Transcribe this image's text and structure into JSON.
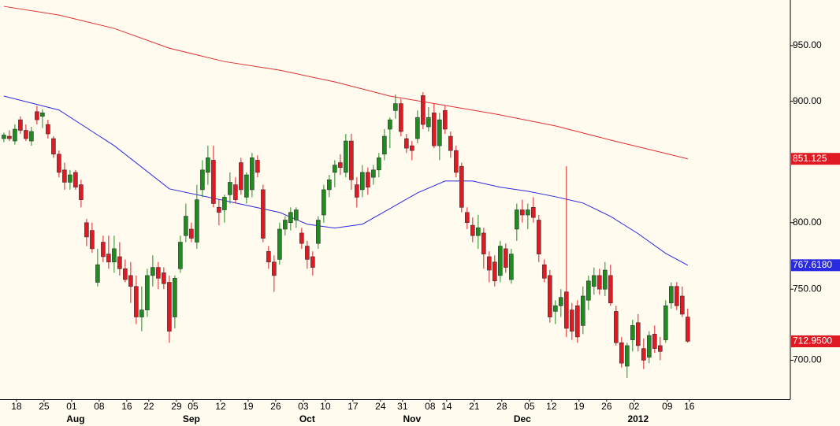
{
  "chart_data": {
    "type": "candlestick",
    "log_scale": true,
    "ylim": [
      674,
      993
    ],
    "xlim": [
      -0.7,
      142.6
    ],
    "yticks": [
      {
        "value": 950,
        "label": "950.00"
      },
      {
        "value": 900,
        "label": "900.00"
      },
      {
        "value": 800,
        "label": "800.00"
      },
      {
        "value": 750,
        "label": "750.00"
      },
      {
        "value": 700,
        "label": "700.00"
      }
    ],
    "up_color": "#1e8c1e",
    "down_color": "#e01a22",
    "open": [
      868,
      870,
      866,
      884,
      875,
      866,
      891,
      887,
      880,
      868,
      855,
      842,
      832,
      840,
      830,
      800,
      794,
      755,
      785,
      776,
      770,
      774,
      765,
      760,
      752,
      730,
      735,
      760,
      766,
      762,
      755,
      730,
      765,
      790,
      795,
      785,
      826,
      840,
      850,
      812,
      810,
      822,
      830,
      848,
      820,
      826,
      850,
      826,
      778,
      770,
      772,
      795,
      800,
      802,
      792,
      782,
      774,
      784,
      806,
      826,
      840,
      848,
      840,
      866,
      830,
      826,
      840,
      836,
      842,
      855,
      876,
      892,
      898,
      868,
      862,
      868,
      905,
      878,
      890,
      862,
      892,
      870,
      858,
      845,
      808,
      798,
      790,
      792,
      774,
      770,
      760,
      780,
      757,
      795,
      810,
      806,
      812,
      802,
      768,
      760,
      734,
      738,
      748,
      735,
      738,
      724,
      742,
      752,
      760,
      750,
      760,
      734,
      712,
      696,
      714,
      726,
      708,
      702,
      718,
      710,
      714,
      740,
      752,
      745,
      730
    ],
    "high": [
      873,
      875,
      880,
      887,
      880,
      878,
      896,
      893,
      884,
      870,
      858,
      848,
      842,
      842,
      834,
      803,
      800,
      780,
      790,
      790,
      790,
      785,
      772,
      770,
      760,
      752,
      765,
      775,
      770,
      766,
      760,
      760,
      790,
      815,
      800,
      830,
      850,
      862,
      862,
      818,
      822,
      840,
      836,
      852,
      840,
      856,
      854,
      830,
      782,
      775,
      800,
      805,
      812,
      812,
      796,
      786,
      778,
      805,
      830,
      838,
      850,
      855,
      872,
      872,
      836,
      846,
      844,
      846,
      856,
      876,
      886,
      906,
      902,
      872,
      866,
      892,
      908,
      895,
      898,
      890,
      896,
      874,
      862,
      848,
      812,
      804,
      806,
      796,
      778,
      775,
      786,
      784,
      780,
      815,
      818,
      815,
      820,
      806,
      772,
      764,
      742,
      750,
      845,
      740,
      742,
      752,
      760,
      766,
      765,
      770,
      768,
      738,
      716,
      712,
      728,
      732,
      715,
      720,
      724,
      716,
      742,
      755,
      755,
      752,
      736
    ],
    "low": [
      865,
      866,
      863,
      872,
      866,
      862,
      880,
      877,
      868,
      852,
      836,
      826,
      826,
      826,
      812,
      782,
      777,
      752,
      770,
      765,
      762,
      760,
      755,
      740,
      725,
      720,
      730,
      752,
      750,
      750,
      712,
      722,
      762,
      785,
      785,
      780,
      820,
      830,
      812,
      798,
      800,
      815,
      815,
      822,
      815,
      820,
      836,
      785,
      765,
      748,
      768,
      790,
      794,
      796,
      780,
      765,
      760,
      780,
      800,
      820,
      828,
      838,
      836,
      826,
      812,
      820,
      822,
      830,
      836,
      850,
      860,
      885,
      870,
      856,
      850,
      864,
      876,
      874,
      860,
      850,
      872,
      852,
      836,
      808,
      795,
      785,
      780,
      765,
      755,
      752,
      755,
      762,
      754,
      786,
      800,
      795,
      800,
      770,
      755,
      726,
      725,
      730,
      716,
      714,
      712,
      718,
      735,
      746,
      746,
      745,
      738,
      710,
      695,
      688,
      706,
      706,
      694,
      698,
      705,
      700,
      712,
      736,
      735,
      730,
      712
    ],
    "close": [
      871,
      868,
      876,
      875,
      868,
      874,
      884,
      890,
      872,
      855,
      840,
      832,
      838,
      828,
      818,
      789,
      780,
      768,
      774,
      770,
      780,
      765,
      757,
      752,
      730,
      735,
      760,
      766,
      758,
      754,
      720,
      758,
      785,
      805,
      788,
      818,
      842,
      852,
      815,
      808,
      820,
      832,
      818,
      826,
      838,
      852,
      840,
      788,
      770,
      760,
      795,
      802,
      808,
      810,
      784,
      772,
      766,
      802,
      826,
      834,
      846,
      844,
      866,
      834,
      820,
      840,
      828,
      842,
      852,
      870,
      884,
      898,
      874,
      860,
      858,
      886,
      880,
      886,
      862,
      884,
      876,
      858,
      840,
      812,
      800,
      790,
      796,
      776,
      764,
      756,
      782,
      766,
      776,
      810,
      806,
      810,
      804,
      776,
      758,
      730,
      738,
      744,
      722,
      720,
      716,
      745,
      756,
      760,
      750,
      764,
      740,
      712,
      698,
      710,
      724,
      710,
      700,
      717,
      708,
      706,
      738,
      752,
      738,
      732,
      713
    ],
    "lines": [
      {
        "color": "#e03030",
        "x": [
          0,
          10,
          20,
          30,
          40,
          50,
          60,
          70,
          80,
          90,
          100,
          110,
          120,
          124
        ],
        "values": [
          986.9,
          978.6,
          966,
          947.6,
          935.4,
          927.6,
          917.1,
          904.6,
          896.4,
          888.2,
          878.8,
          866.8,
          855.6,
          851.125
        ]
      },
      {
        "color": "#2a2ae0",
        "x": [
          0,
          10,
          20,
          30,
          40,
          50,
          55,
          60,
          65,
          70,
          75,
          80,
          85,
          90,
          95,
          100,
          105,
          110,
          115,
          120,
          124
        ],
        "values": [
          904.6,
          892.4,
          862.1,
          826.7,
          817.3,
          808,
          798.8,
          795.8,
          798.8,
          811,
          823.5,
          833,
          833,
          828,
          824.8,
          820.4,
          815.4,
          804.9,
          791.5,
          776.5,
          767.618
        ]
      }
    ],
    "price_markers": [
      {
        "value": 851.125,
        "label": "851.125",
        "color": "#e01a22"
      },
      {
        "value": 767.618,
        "label": "767.6180",
        "color": "#2a2ae0"
      },
      {
        "value": 712.95,
        "label": "712.9500",
        "color": "#e01a22"
      }
    ],
    "day_labels": [
      {
        "index": 2,
        "label": "18"
      },
      {
        "index": 7,
        "label": "25"
      },
      {
        "index": 12,
        "label": "01"
      },
      {
        "index": 17,
        "label": "08"
      },
      {
        "index": 22,
        "label": "16"
      },
      {
        "index": 26,
        "label": "22"
      },
      {
        "index": 31,
        "label": "29"
      },
      {
        "index": 34,
        "label": "05"
      },
      {
        "index": 39,
        "label": "12"
      },
      {
        "index": 44,
        "label": "19"
      },
      {
        "index": 49,
        "label": "26"
      },
      {
        "index": 54,
        "label": "03"
      },
      {
        "index": 58,
        "label": "10"
      },
      {
        "index": 63,
        "label": "17"
      },
      {
        "index": 68,
        "label": "24"
      },
      {
        "index": 72,
        "label": "31"
      },
      {
        "index": 77,
        "label": "08"
      },
      {
        "index": 80,
        "label": "14"
      },
      {
        "index": 85,
        "label": "21"
      },
      {
        "index": 90,
        "label": "28"
      },
      {
        "index": 95,
        "label": "05"
      },
      {
        "index": 99,
        "label": "12"
      },
      {
        "index": 104,
        "label": "19"
      },
      {
        "index": 109,
        "label": "26"
      },
      {
        "index": 114,
        "label": "02"
      },
      {
        "index": 120,
        "label": "09"
      },
      {
        "index": 124,
        "label": "16"
      }
    ],
    "month_labels": [
      {
        "index": 13,
        "label": "Aug"
      },
      {
        "index": 34,
        "label": "Sep"
      },
      {
        "index": 55,
        "label": "Oct"
      },
      {
        "index": 74,
        "label": "Nov"
      },
      {
        "index": 94,
        "label": "Dec"
      },
      {
        "index": 115,
        "label": "2012"
      }
    ]
  }
}
